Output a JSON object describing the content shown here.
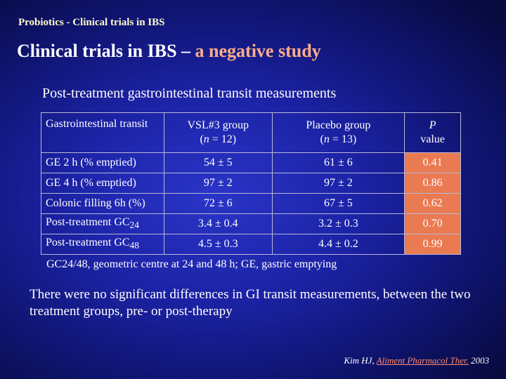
{
  "slide": {
    "header": "Probiotics - Clinical trials in IBS",
    "title_part1": "Clinical trials in IBS –",
    "title_part2": " a negative study",
    "subtitle": "Post-treatment gastrointestinal transit measurements"
  },
  "table": {
    "headers": {
      "col0": "Gastrointestinal transit",
      "col1_line1": "VSL#3 group",
      "col1_n": "n",
      "col1_rest": " = 12)",
      "col2_line1": "Placebo group",
      "col2_n": "n",
      "col2_rest": " = 13)",
      "col3_line1": "P",
      "col3_line2": "value"
    },
    "rows": [
      {
        "label": "GE 2 h (% emptied)",
        "sub": "",
        "vsl3": "54 ± 5",
        "placebo": "61 ± 6",
        "p": "0.41"
      },
      {
        "label": "GE 4 h (% emptied)",
        "sub": "",
        "vsl3": "97 ± 2",
        "placebo": "97 ± 2",
        "p": "0.86"
      },
      {
        "label": "Colonic filling 6h (%)",
        "sub": "",
        "vsl3": "72 ± 6",
        "placebo": "67 ± 5",
        "p": "0.62"
      },
      {
        "label": "Post-treatment GC",
        "sub": "24",
        "vsl3": "3.4 ± 0.4",
        "placebo": "3.2 ± 0.3",
        "p": "0.70"
      },
      {
        "label": "Post-treatment GC",
        "sub": "48",
        "vsl3": "4.5 ± 0.3",
        "placebo": "4.4 ± 0.2",
        "p": "0.99"
      }
    ]
  },
  "footnote": "GC24/48, geometric centre at 24 and 48 h; GE, gastric emptying",
  "conclusion": "There were no significant differences in GI transit measurements, between the two treatment groups, pre- or post-therapy",
  "citation": {
    "authors": "Kim HJ, ",
    "journal": "Aliment Pharmacol Ther.",
    "year": " 2003"
  },
  "colors": {
    "header_text": "#fffccc",
    "title_text": "#ffffff",
    "title_accent": "#ffad88",
    "p_value_cell": "#e97a52",
    "background": "#1c23a6"
  }
}
